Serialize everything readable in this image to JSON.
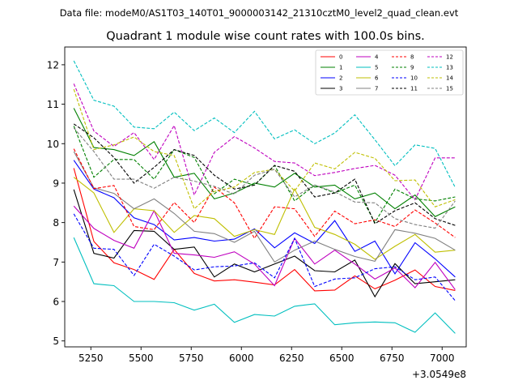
{
  "chart_data": {
    "type": "line",
    "suptitle": "Data file: modeM0/AS1T03_140T01_9000003142_21310cztM0_level2_quad_clean.evt",
    "title": "Quadrant 1 module wise count rates with 100.0s bins.",
    "xlabel": "",
    "ylabel": "",
    "x_offset_label": "+3.0549e8",
    "xlim": [
      5120,
      7120
    ],
    "ylim": [
      4.85,
      12.45
    ],
    "xticks": [
      5250,
      5500,
      5750,
      6000,
      6250,
      6500,
      6750,
      7000
    ],
    "yticks": [
      5,
      6,
      7,
      8,
      9,
      10,
      11,
      12
    ],
    "grid": false,
    "legend_position": "top-right",
    "x": [
      5165,
      5265,
      5365,
      5465,
      5565,
      5665,
      5765,
      5865,
      5965,
      6065,
      6165,
      6265,
      6365,
      6465,
      6565,
      6665,
      6765,
      6865,
      6965,
      7065
    ],
    "series": [
      {
        "name": "0",
        "color": "#ff0000",
        "dash": "solid",
        "values": [
          9.38,
          7.52,
          6.98,
          6.81,
          6.56,
          7.32,
          6.71,
          6.52,
          6.55,
          6.49,
          6.42,
          6.81,
          6.27,
          6.29,
          6.65,
          6.32,
          6.54,
          6.8,
          6.38,
          6.28
        ]
      },
      {
        "name": "1",
        "color": "#008000",
        "dash": "solid",
        "values": [
          10.9,
          9.9,
          9.85,
          9.7,
          10.05,
          9.15,
          9.25,
          8.6,
          8.75,
          9.0,
          8.9,
          9.25,
          8.9,
          8.95,
          8.6,
          8.75,
          8.35,
          8.7,
          8.15,
          8.4
        ]
      },
      {
        "name": "2",
        "color": "#0000ff",
        "dash": "solid",
        "values": [
          9.58,
          8.85,
          8.63,
          8.12,
          7.95,
          7.56,
          7.62,
          7.53,
          7.58,
          7.84,
          7.36,
          7.74,
          7.47,
          8.05,
          7.27,
          7.53,
          6.7,
          7.49,
          7.08,
          6.62
        ]
      },
      {
        "name": "3",
        "color": "#000000",
        "dash": "solid",
        "values": [
          8.84,
          7.22,
          7.1,
          7.8,
          7.78,
          7.32,
          7.38,
          6.62,
          6.95,
          6.75,
          6.95,
          7.15,
          6.78,
          6.75,
          7.05,
          6.12,
          6.96,
          6.45,
          6.5,
          6.55
        ]
      },
      {
        "name": "4",
        "color": "#bf00bf",
        "dash": "solid",
        "values": [
          8.42,
          7.85,
          7.55,
          7.35,
          8.3,
          7.22,
          7.18,
          7.12,
          7.26,
          6.95,
          6.4,
          7.6,
          6.95,
          7.3,
          6.95,
          6.57,
          6.85,
          6.35,
          6.99,
          6.3
        ]
      },
      {
        "name": "5",
        "color": "#00bfbf",
        "dash": "solid",
        "values": [
          7.62,
          6.45,
          6.4,
          6.0,
          6.0,
          5.97,
          5.78,
          5.93,
          5.47,
          5.67,
          5.63,
          5.88,
          5.94,
          5.41,
          5.46,
          5.48,
          5.46,
          5.22,
          5.71,
          5.19
        ]
      },
      {
        "name": "6",
        "color": "#bfbf00",
        "dash": "solid",
        "values": [
          9.15,
          8.75,
          7.75,
          8.35,
          8.3,
          7.75,
          8.18,
          8.1,
          7.65,
          7.82,
          7.7,
          8.85,
          7.88,
          7.7,
          7.45,
          7.07,
          7.4,
          7.7,
          7.25,
          7.3
        ]
      },
      {
        "name": "7",
        "color": "#808080",
        "dash": "solid",
        "values": [
          9.8,
          8.88,
          8.74,
          8.35,
          8.6,
          8.23,
          7.78,
          7.72,
          7.5,
          7.78,
          7.0,
          7.3,
          7.53,
          7.32,
          7.14,
          7.02,
          7.82,
          7.73,
          7.6,
          7.3
        ]
      },
      {
        "name": "8",
        "color": "#ff0000",
        "dash": "dashed",
        "values": [
          9.87,
          8.86,
          8.94,
          7.9,
          7.82,
          8.51,
          8.0,
          8.9,
          8.5,
          7.6,
          8.4,
          8.35,
          7.65,
          8.29,
          7.97,
          8.07,
          7.9,
          8.32,
          7.99,
          7.62
        ]
      },
      {
        "name": "9",
        "color": "#008000",
        "dash": "dashed",
        "values": [
          10.45,
          9.15,
          9.6,
          9.6,
          9.1,
          9.85,
          9.65,
          8.73,
          9.1,
          8.95,
          9.45,
          8.55,
          8.95,
          8.75,
          8.95,
          8.0,
          8.85,
          8.6,
          8.55,
          8.65
        ]
      },
      {
        "name": "10",
        "color": "#0000ff",
        "dash": "dashed",
        "values": [
          8.22,
          7.35,
          7.32,
          6.66,
          7.45,
          7.15,
          6.8,
          6.88,
          6.9,
          6.98,
          6.6,
          7.6,
          6.38,
          6.57,
          6.6,
          6.83,
          6.88,
          6.55,
          6.62,
          6.02
        ]
      },
      {
        "name": "11",
        "color": "#000000",
        "dash": "dashed",
        "values": [
          10.5,
          10.15,
          9.65,
          9.0,
          9.4,
          9.85,
          9.7,
          9.2,
          8.85,
          8.95,
          9.45,
          9.3,
          8.65,
          8.75,
          9.1,
          7.97,
          8.3,
          8.5,
          8.1,
          7.93
        ]
      },
      {
        "name": "12",
        "color": "#bf00bf",
        "dash": "dashed",
        "values": [
          11.52,
          10.32,
          9.93,
          10.28,
          9.6,
          10.46,
          8.7,
          9.78,
          10.18,
          9.89,
          9.55,
          9.51,
          9.19,
          9.27,
          9.37,
          9.45,
          9.2,
          8.58,
          9.64,
          9.64
        ]
      },
      {
        "name": "13",
        "color": "#00bfbf",
        "dash": "dashed",
        "values": [
          12.1,
          11.1,
          10.95,
          10.42,
          10.38,
          10.8,
          10.33,
          10.65,
          10.28,
          10.82,
          10.12,
          10.35,
          10.0,
          10.27,
          10.73,
          10.1,
          9.44,
          9.97,
          9.88,
          8.89
        ]
      },
      {
        "name": "14",
        "color": "#bfbf00",
        "dash": "dashed",
        "values": [
          11.38,
          9.85,
          9.97,
          10.17,
          9.8,
          9.7,
          8.35,
          8.79,
          8.9,
          9.27,
          9.35,
          8.8,
          9.51,
          9.36,
          9.78,
          9.63,
          9.06,
          9.08,
          8.4,
          8.58
        ]
      },
      {
        "name": "15",
        "color": "#808080",
        "dash": "dashed",
        "values": [
          10.4,
          9.8,
          9.1,
          9.1,
          8.87,
          9.15,
          9.05,
          8.92,
          8.72,
          9.2,
          9.35,
          8.65,
          8.95,
          8.78,
          8.52,
          8.5,
          8.1,
          7.95,
          7.86,
          8.55
        ]
      }
    ]
  }
}
